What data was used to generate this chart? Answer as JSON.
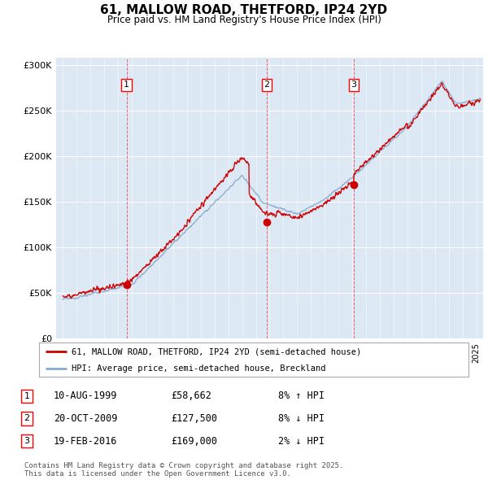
{
  "title": "61, MALLOW ROAD, THETFORD, IP24 2YD",
  "subtitle": "Price paid vs. HM Land Registry's House Price Index (HPI)",
  "ylabel_ticks": [
    "£0",
    "£50K",
    "£100K",
    "£150K",
    "£200K",
    "£250K",
    "£300K"
  ],
  "ytick_values": [
    0,
    50000,
    100000,
    150000,
    200000,
    250000,
    300000
  ],
  "ylim": [
    0,
    308000
  ],
  "xlim_start": 1994.5,
  "xlim_end": 2025.5,
  "background_color": "#dde8f5",
  "line_color_red": "#cc0000",
  "line_color_blue": "#88aacc",
  "sale_markers": [
    {
      "year": 1999.61,
      "price": 58662,
      "label": "1"
    },
    {
      "year": 2009.8,
      "price": 127500,
      "label": "2"
    },
    {
      "year": 2016.12,
      "price": 169000,
      "label": "3"
    }
  ],
  "legend_line1": "61, MALLOW ROAD, THETFORD, IP24 2YD (semi-detached house)",
  "legend_line2": "HPI: Average price, semi-detached house, Breckland",
  "table_rows": [
    {
      "num": "1",
      "date": "10-AUG-1999",
      "price": "£58,662",
      "pct": "8% ↑ HPI"
    },
    {
      "num": "2",
      "date": "20-OCT-2009",
      "price": "£127,500",
      "pct": "8% ↓ HPI"
    },
    {
      "num": "3",
      "date": "19-FEB-2016",
      "price": "£169,000",
      "pct": "2% ↓ HPI"
    }
  ],
  "footer": "Contains HM Land Registry data © Crown copyright and database right 2025.\nThis data is licensed under the Open Government Licence v3.0."
}
